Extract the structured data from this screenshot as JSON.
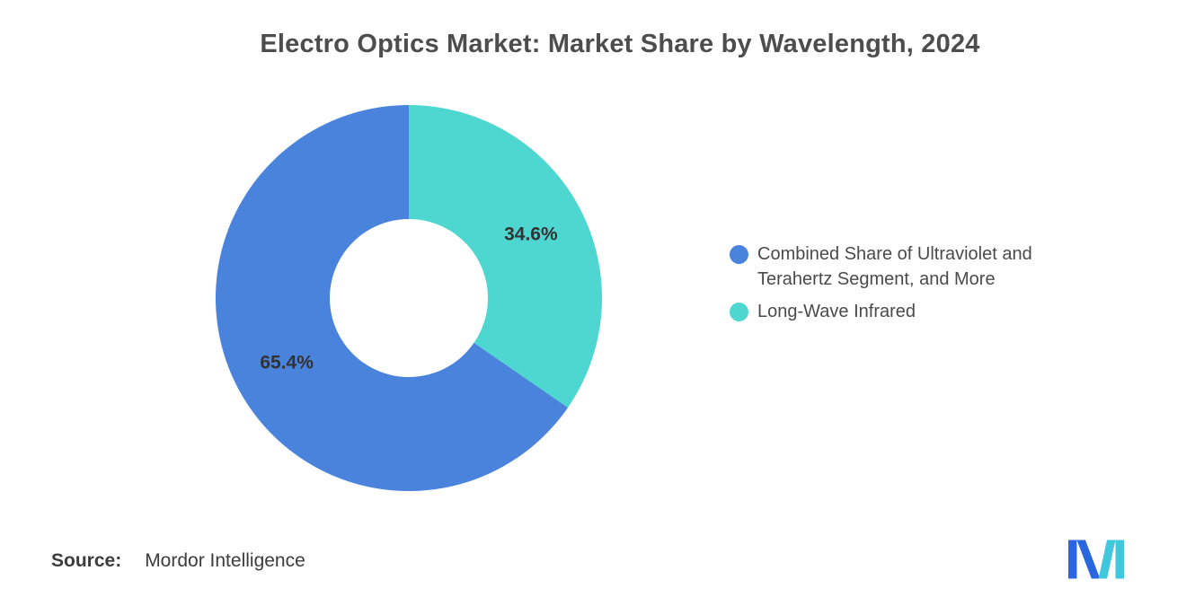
{
  "title": "Electro Optics Market: Market Share by Wavelength, 2024",
  "source": {
    "label": "Source:",
    "value": "Mordor Intelligence"
  },
  "chart_data": {
    "type": "pie",
    "donut": true,
    "title": "Electro Optics Market: Market Share by Wavelength, 2024",
    "unit": "%",
    "total": 100,
    "series": [
      {
        "name": "Combined Share of Ultraviolet and Terahertz Segment, and More",
        "value": 65.4,
        "label": "65.4%",
        "color": "#4A83DC"
      },
      {
        "name": "Long-Wave Infrared",
        "value": 34.6,
        "label": "34.6%",
        "color": "#4ED6D1"
      }
    ],
    "draw_order_clockwise_from_top": [
      1,
      0
    ],
    "start_angle_deg": 0,
    "inner_radius_ratio": 0.41,
    "legend_position": "right",
    "grid": false
  },
  "logo": {
    "blue": "#2A66DE",
    "teal": "#41C7DB"
  }
}
